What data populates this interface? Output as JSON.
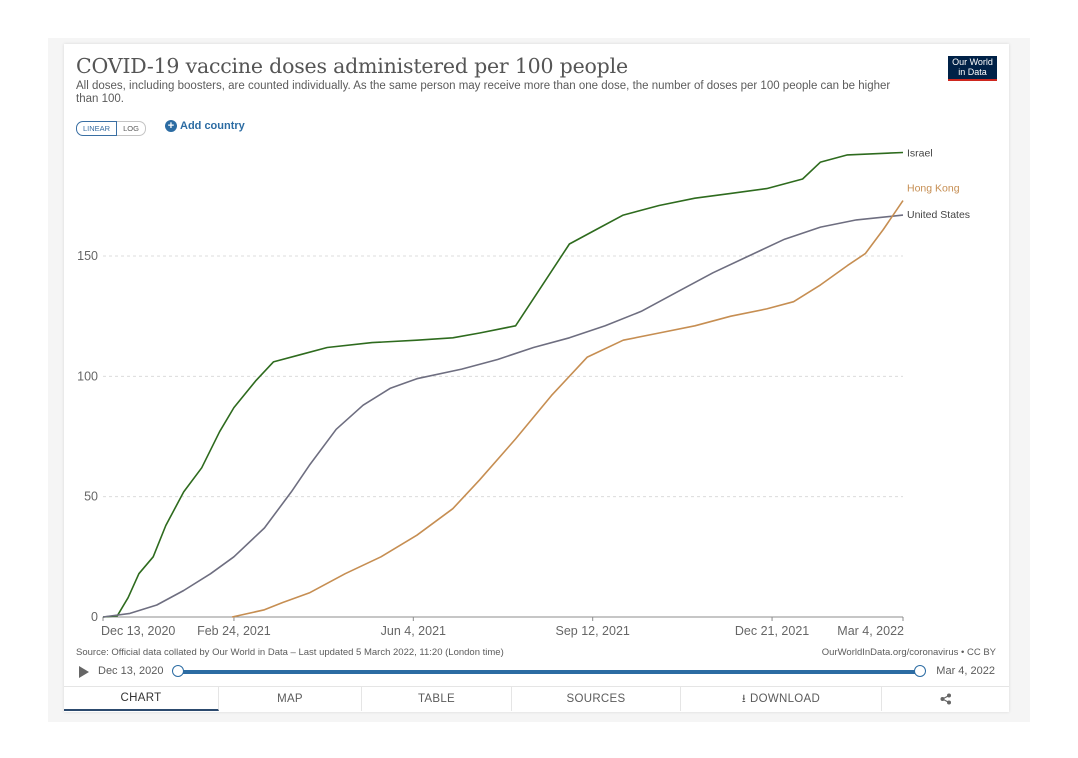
{
  "title": "COVID-19 vaccine doses administered per 100 people",
  "subtitle": "All doses, including boosters, are counted individually. As the same person may receive more than one dose, the number of doses per 100 people can be higher than 100.",
  "logo": {
    "line1": "Our World",
    "line2": "in Data"
  },
  "scale_toggle": {
    "linear": "LINEAR",
    "log": "LOG",
    "selected": "LINEAR"
  },
  "add_country_label": "Add country",
  "source": "Source: Official data collated by Our World in Data – Last updated 5 March 2022, 11:20 (London time)",
  "url": "OurWorldInData.org/coronavirus • CC BY",
  "timeline": {
    "start": "Dec 13, 2020",
    "end": "Mar 4, 2022"
  },
  "tabs": [
    "CHART",
    "MAP",
    "TABLE",
    "SOURCES",
    "DOWNLOAD"
  ],
  "icons": {
    "play": "play-icon",
    "download": "download-icon",
    "share": "share-icon",
    "add": "plus-circle-icon"
  },
  "colors": {
    "Israel": "#2e6b1e",
    "United States": "#6e6e80",
    "Hong Kong": "#c68e52",
    "accent": "#2c6ca3"
  },
  "chart_data": {
    "type": "line",
    "x_tick_labels": [
      "Dec 13, 2020",
      "Feb 24, 2021",
      "Jun 4, 2021",
      "Sep 12, 2021",
      "Dec 21, 2021",
      "Mar 4, 2022"
    ],
    "x_tick_days": [
      0,
      73,
      173,
      273,
      373,
      446
    ],
    "yticks": [
      0,
      50,
      100,
      150
    ],
    "ylim": [
      0,
      190
    ],
    "grid": "horizontal dotted",
    "series": [
      {
        "name": "Israel",
        "points": [
          [
            0,
            0
          ],
          [
            8,
            0.5
          ],
          [
            14,
            8
          ],
          [
            20,
            18
          ],
          [
            28,
            25
          ],
          [
            35,
            38
          ],
          [
            45,
            52
          ],
          [
            55,
            62
          ],
          [
            65,
            77
          ],
          [
            73,
            87
          ],
          [
            85,
            98
          ],
          [
            95,
            106
          ],
          [
            110,
            109
          ],
          [
            125,
            112
          ],
          [
            150,
            114
          ],
          [
            175,
            115
          ],
          [
            195,
            116
          ],
          [
            210,
            118
          ],
          [
            230,
            121
          ],
          [
            245,
            138
          ],
          [
            260,
            155
          ],
          [
            275,
            161
          ],
          [
            290,
            167
          ],
          [
            310,
            171
          ],
          [
            330,
            174
          ],
          [
            350,
            176
          ],
          [
            370,
            178
          ],
          [
            390,
            182
          ],
          [
            400,
            189
          ],
          [
            415,
            192
          ],
          [
            446,
            193
          ]
        ]
      },
      {
        "name": "United States",
        "points": [
          [
            0,
            0
          ],
          [
            15,
            1.5
          ],
          [
            30,
            5
          ],
          [
            45,
            11
          ],
          [
            60,
            18
          ],
          [
            73,
            25
          ],
          [
            90,
            37
          ],
          [
            105,
            52
          ],
          [
            115,
            63
          ],
          [
            130,
            78
          ],
          [
            145,
            88
          ],
          [
            160,
            95
          ],
          [
            175,
            99
          ],
          [
            200,
            103
          ],
          [
            220,
            107
          ],
          [
            240,
            112
          ],
          [
            260,
            116
          ],
          [
            280,
            121
          ],
          [
            300,
            127
          ],
          [
            320,
            135
          ],
          [
            340,
            143
          ],
          [
            360,
            150
          ],
          [
            380,
            157
          ],
          [
            400,
            162
          ],
          [
            420,
            165
          ],
          [
            446,
            167
          ]
        ]
      },
      {
        "name": "Hong Kong",
        "points": [
          [
            72,
            0
          ],
          [
            90,
            3
          ],
          [
            100,
            6
          ],
          [
            115,
            10
          ],
          [
            135,
            18
          ],
          [
            155,
            25
          ],
          [
            175,
            34
          ],
          [
            195,
            45
          ],
          [
            210,
            57
          ],
          [
            230,
            74
          ],
          [
            250,
            92
          ],
          [
            270,
            108
          ],
          [
            290,
            115
          ],
          [
            310,
            118
          ],
          [
            330,
            121
          ],
          [
            350,
            125
          ],
          [
            370,
            128
          ],
          [
            385,
            131
          ],
          [
            400,
            138
          ],
          [
            415,
            146
          ],
          [
            425,
            151
          ],
          [
            435,
            161
          ],
          [
            446,
            173
          ]
        ]
      }
    ]
  }
}
